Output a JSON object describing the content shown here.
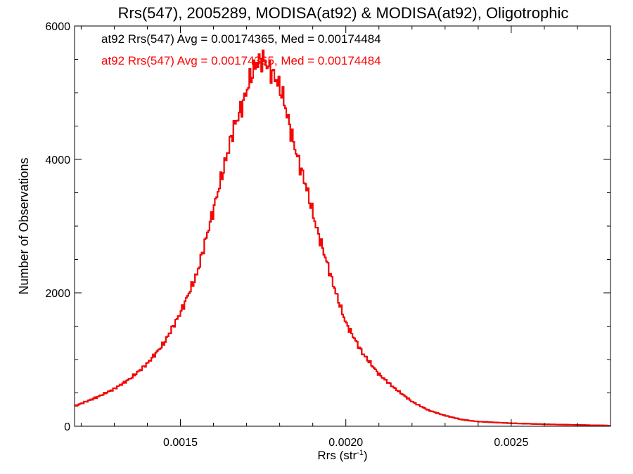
{
  "chart_data": {
    "type": "histogram-step",
    "title": "Rrs(547), 2005289, MODISA(at92) & MODISA(at92), Oligotrophic",
    "xlabel": "Rrs (str",
    "xlabel_sup": "-1",
    "xlabel_suffix": ")",
    "ylabel": "Number of Observations",
    "xlim": [
      0.00118,
      0.0028
    ],
    "ylim": [
      0,
      6000
    ],
    "x_ticks": [
      0.0015,
      0.002,
      0.0025
    ],
    "x_tick_labels": [
      "0.0015",
      "0.0020",
      "0.0025"
    ],
    "y_ticks": [
      0,
      2000,
      4000,
      6000
    ],
    "y_tick_labels": [
      "0",
      "2000",
      "4000",
      "6000"
    ],
    "legend": [
      {
        "text": "at92 Rrs(547) Avg = 0.00174365, Med = 0.00174484",
        "color": "#000000"
      },
      {
        "text": "at92 Rrs(547) Avg = 0.00174365, Med = 0.00174484",
        "color": "#ff0000"
      }
    ],
    "legend_position": "top-left",
    "series": [
      {
        "color": "#000000",
        "x": [
          0.00118,
          0.00125,
          0.0013,
          0.00135,
          0.0014,
          0.00145,
          0.0015,
          0.00155,
          0.0016,
          0.00163,
          0.00166,
          0.00169,
          0.00171,
          0.00173,
          0.00175,
          0.00177,
          0.00179,
          0.00181,
          0.00183,
          0.00185,
          0.00188,
          0.00191,
          0.00194,
          0.00197,
          0.002,
          0.00205,
          0.0021,
          0.00215,
          0.0022,
          0.00225,
          0.0023,
          0.00235,
          0.0024,
          0.0025,
          0.0026,
          0.0027,
          0.0028
        ],
        "y": [
          300,
          440,
          560,
          720,
          940,
          1240,
          1700,
          2280,
          3250,
          3850,
          4450,
          4850,
          5200,
          5450,
          5500,
          5350,
          5200,
          4950,
          4500,
          4100,
          3600,
          3000,
          2500,
          2000,
          1550,
          1100,
          780,
          560,
          370,
          240,
          160,
          100,
          70,
          45,
          30,
          20,
          10
        ]
      },
      {
        "color": "#ff0000",
        "x": [
          0.00118,
          0.00125,
          0.0013,
          0.00135,
          0.0014,
          0.00145,
          0.0015,
          0.00155,
          0.0016,
          0.00163,
          0.00166,
          0.00169,
          0.00171,
          0.00173,
          0.00175,
          0.00177,
          0.00179,
          0.00181,
          0.00183,
          0.00185,
          0.00188,
          0.00191,
          0.00194,
          0.00197,
          0.002,
          0.00205,
          0.0021,
          0.00215,
          0.0022,
          0.00225,
          0.0023,
          0.00235,
          0.0024,
          0.0025,
          0.0026,
          0.0027,
          0.0028
        ],
        "y": [
          300,
          440,
          560,
          720,
          940,
          1240,
          1700,
          2280,
          3250,
          3850,
          4450,
          4850,
          5200,
          5450,
          5500,
          5350,
          5200,
          4950,
          4500,
          4100,
          3600,
          3000,
          2500,
          2000,
          1550,
          1100,
          780,
          560,
          370,
          240,
          160,
          100,
          70,
          45,
          30,
          20,
          10
        ]
      }
    ]
  }
}
